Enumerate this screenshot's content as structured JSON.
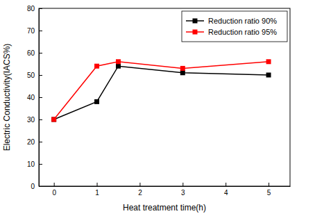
{
  "chart_data": {
    "type": "line",
    "x_label": "Heat treatment time(h)",
    "y_label": "Electric Conductivity(IACS%)",
    "x": [
      0,
      1,
      1.5,
      3,
      5
    ],
    "series": [
      {
        "name": "Reduction ratio 90%",
        "color": "#000000",
        "marker": "square",
        "values": [
          30,
          38,
          54,
          51,
          50
        ]
      },
      {
        "name": "Reduction ratio 95%",
        "color": "#ff0000",
        "marker": "square",
        "values": [
          30,
          54,
          56,
          53,
          56
        ]
      }
    ],
    "xlim": [
      -0.35,
      5.5
    ],
    "xticks": [
      0,
      1,
      2,
      3,
      4,
      5
    ],
    "ylim": [
      0,
      80
    ],
    "yticks": [
      0,
      10,
      20,
      30,
      40,
      50,
      60,
      70,
      80
    ],
    "grid": false,
    "legend": "upper right"
  }
}
